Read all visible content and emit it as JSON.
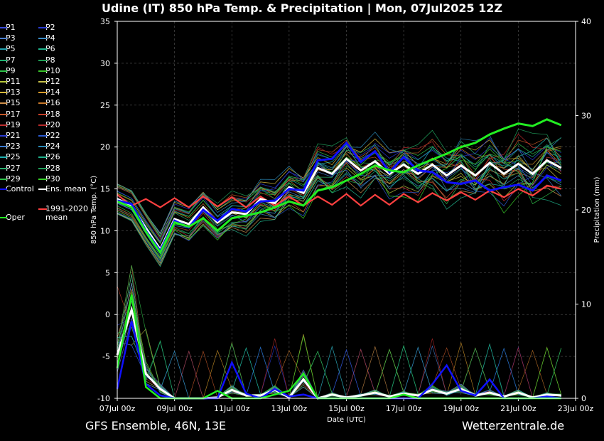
{
  "title": "Udine  (IT)  850 hPa Temp. & Precipitation | Mon, 07Jul2025 12Z",
  "footer": {
    "model": "GFS Ensemble, 46N, 13E",
    "site": "Wetterzentrale.de"
  },
  "legend": [
    {
      "label": "P1",
      "color": "#3a4bd6"
    },
    {
      "label": "P2",
      "color": "#2a3bd0"
    },
    {
      "label": "P3",
      "color": "#4a7fd0"
    },
    {
      "label": "P4",
      "color": "#3b8dc8"
    },
    {
      "label": "P5",
      "color": "#22a2b0"
    },
    {
      "label": "P6",
      "color": "#1fb58e"
    },
    {
      "label": "P7",
      "color": "#1fb070"
    },
    {
      "label": "P8",
      "color": "#1f9e55"
    },
    {
      "label": "P9",
      "color": "#2fc24a"
    },
    {
      "label": "P10",
      "color": "#39c22a"
    },
    {
      "label": "P11",
      "color": "#b8c83a"
    },
    {
      "label": "P12",
      "color": "#c9c24a"
    },
    {
      "label": "P13",
      "color": "#d6b83a"
    },
    {
      "label": "P14",
      "color": "#d69a2a"
    },
    {
      "label": "P15",
      "color": "#d0904a"
    },
    {
      "label": "P16",
      "color": "#c8782a"
    },
    {
      "label": "P17",
      "color": "#c85a2a"
    },
    {
      "label": "P18",
      "color": "#c8402a"
    },
    {
      "label": "P19",
      "color": "#c03030"
    },
    {
      "label": "P20",
      "color": "#b82a2a"
    },
    {
      "label": "P21",
      "color": "#2a3bd0"
    },
    {
      "label": "P22",
      "color": "#2a5ad0"
    },
    {
      "label": "P23",
      "color": "#3a7ad0"
    },
    {
      "label": "P24",
      "color": "#2a8ab8"
    },
    {
      "label": "P25",
      "color": "#1fb0b0"
    },
    {
      "label": "P26",
      "color": "#1fb08a"
    },
    {
      "label": "P27",
      "color": "#2ab070"
    },
    {
      "label": "P28",
      "color": "#1fa05a"
    },
    {
      "label": "P29",
      "color": "#2fc24a"
    },
    {
      "label": "P30",
      "color": "#39d02a"
    },
    {
      "label": "Control",
      "color": "#1010ff"
    },
    {
      "label": "Ens. mean",
      "color": "#ffffff"
    },
    {
      "label": "Oper",
      "color": "#22ee22"
    },
    {
      "label": "1991-2020 mean",
      "color": "#ff4040"
    }
  ],
  "chart_data": {
    "type": "line",
    "title": "Udine  (IT)  850 hPa Temp. & Precipitation | Mon, 07Jul2025 12Z",
    "xlabel": "Date (UTC)",
    "ylabel": "850 hPa Temp. (°C)",
    "y2label": "Precipitation (mm)",
    "xlim": [
      0,
      16
    ],
    "ylim": [
      -10,
      35
    ],
    "y2lim": [
      0,
      40
    ],
    "yticks": [
      -10,
      -5,
      0,
      5,
      10,
      15,
      20,
      25,
      30,
      35
    ],
    "y2ticks": [
      0,
      10,
      20,
      30,
      40
    ],
    "xticks": [
      {
        "x": 0.5,
        "label": "07Jul 00z"
      },
      {
        "x": 2.5,
        "label": "09Jul 00z"
      },
      {
        "x": 4.5,
        "label": "11Jul 00z"
      },
      {
        "x": 6.5,
        "label": "13Jul 00z"
      },
      {
        "x": 8.5,
        "label": "15Jul 00z"
      },
      {
        "x": 10.5,
        "label": "17Jul 00z"
      },
      {
        "x": 12.5,
        "label": "19Jul 00z"
      },
      {
        "x": 14.5,
        "label": "21Jul 00z"
      },
      {
        "x": 16.5,
        "label": "23Jul 00z"
      }
    ],
    "grid": true,
    "legend_position": "left",
    "series": [
      {
        "name": "1991-2020 mean",
        "color": "#ff4040",
        "x": [
          0.5,
          1,
          1.5,
          2,
          2.5,
          3,
          3.5,
          4,
          4.5,
          5,
          5.5,
          6,
          6.5,
          7,
          7.5,
          8,
          8.5,
          9,
          9.5,
          10,
          10.5,
          11,
          11.5,
          12,
          12.5,
          13,
          13.5,
          14,
          14.5,
          15,
          15.5,
          16
        ],
        "y": [
          14.3,
          13.0,
          13.8,
          12.8,
          13.9,
          12.8,
          14.1,
          12.9,
          14.0,
          12.8,
          14.1,
          13.0,
          14.1,
          13.0,
          14.1,
          13.1,
          14.4,
          13.0,
          14.3,
          13.1,
          14.4,
          13.4,
          14.5,
          13.6,
          14.6,
          13.7,
          14.8,
          14.0,
          15.0,
          14.2,
          15.4,
          15.0
        ]
      },
      {
        "name": "Ens. mean",
        "color": "#ffffff",
        "x": [
          0.5,
          1,
          1.5,
          2,
          2.5,
          3,
          3.5,
          4,
          4.5,
          5,
          5.5,
          6,
          6.5,
          7,
          7.5,
          8,
          8.5,
          9,
          9.5,
          10,
          10.5,
          11,
          11.5,
          12,
          12.5,
          13,
          13.5,
          14,
          14.5,
          15,
          15.5,
          16
        ],
        "y": [
          13.8,
          13.0,
          10.3,
          7.8,
          11.4,
          10.8,
          12.8,
          11.0,
          12.2,
          12.0,
          13.8,
          13.3,
          15.2,
          14.5,
          17.5,
          16.8,
          18.6,
          17.2,
          18.3,
          16.8,
          17.9,
          16.8,
          17.9,
          16.6,
          17.8,
          16.6,
          18.1,
          16.8,
          18.0,
          16.8,
          18.4,
          17.5
        ]
      },
      {
        "name": "Control",
        "color": "#1010ff",
        "x": [
          0.5,
          1,
          1.5,
          2,
          2.5,
          3,
          3.5,
          4,
          4.5,
          5,
          5.5,
          6,
          6.5,
          7,
          7.5,
          8,
          8.5,
          9,
          9.5,
          10,
          10.5,
          11,
          11.5,
          12,
          12.5,
          13,
          13.5,
          14,
          14.5,
          15,
          15.5,
          16
        ],
        "y": [
          13.6,
          13.2,
          10.0,
          7.6,
          11.2,
          10.4,
          12.5,
          11.2,
          12.6,
          12.3,
          13.5,
          13.6,
          15.0,
          14.8,
          18.4,
          18.6,
          20.5,
          18.2,
          19.5,
          17.0,
          18.8,
          17.2,
          17.0,
          15.8,
          15.6,
          16.0,
          14.8,
          15.2,
          15.5,
          14.8,
          16.6,
          16.0
        ]
      },
      {
        "name": "Oper",
        "color": "#22ee22",
        "x": [
          0.5,
          1,
          1.5,
          2,
          2.5,
          3,
          3.5,
          4,
          4.5,
          5,
          5.5,
          6,
          6.5,
          7,
          7.5,
          8,
          8.5,
          9,
          9.5,
          10,
          10.5,
          11,
          11.5,
          12,
          12.5,
          13,
          13.5,
          14,
          14.5,
          15,
          15.5,
          16
        ],
        "y": [
          13.5,
          12.8,
          9.9,
          7.4,
          11.0,
          10.5,
          11.5,
          10.0,
          11.5,
          11.8,
          12.2,
          12.8,
          13.5,
          13.0,
          14.8,
          15.2,
          16.0,
          16.8,
          17.8,
          17.2,
          17.0,
          17.8,
          18.5,
          19.2,
          20.0,
          20.5,
          21.5,
          22.2,
          22.8,
          22.5,
          23.3,
          22.6
        ]
      }
    ],
    "precip_series": [
      {
        "name": "Ens. mean",
        "color": "#ffffff",
        "x": [
          0.5,
          1,
          1.5,
          2,
          2.5,
          3,
          3.5,
          4,
          4.5,
          5,
          5.5,
          6,
          6.5,
          7,
          7.5,
          8,
          8.5,
          9,
          9.5,
          10,
          10.5,
          11,
          11.5,
          12,
          12.5,
          13,
          13.5,
          14,
          14.5,
          15,
          15.5,
          16
        ],
        "y": [
          4.6,
          9.4,
          2.6,
          1.0,
          0.0,
          0.0,
          0.0,
          0.1,
          0.9,
          0.3,
          0.3,
          0.9,
          0.1,
          2.0,
          0.0,
          0.4,
          0.1,
          0.3,
          0.6,
          0.2,
          0.5,
          0.3,
          0.9,
          0.5,
          1.0,
          0.3,
          0.6,
          0.2,
          0.6,
          0.1,
          0.4,
          0.3
        ]
      },
      {
        "name": "Control",
        "color": "#1010ff",
        "x": [
          0.5,
          1,
          1.5,
          2,
          2.5,
          3,
          3.5,
          4,
          4.5,
          5,
          5.5,
          6,
          6.5,
          7,
          7.5,
          8,
          8.5,
          9,
          9.5,
          10,
          10.5,
          11,
          11.5,
          12,
          12.5,
          13,
          13.5,
          14,
          14.5,
          15,
          15.5,
          16
        ],
        "y": [
          1.0,
          8.2,
          1.5,
          0.3,
          0.0,
          0.0,
          0.0,
          0.0,
          3.8,
          0.5,
          0.0,
          1.0,
          0.2,
          0.4,
          0.0,
          0.0,
          0.0,
          0.0,
          0.0,
          0.0,
          0.0,
          0.0,
          1.5,
          3.5,
          0.8,
          0.3,
          2.0,
          0.0,
          0.0,
          0.0,
          0.2,
          0.0
        ]
      },
      {
        "name": "Oper",
        "color": "#22ee22",
        "x": [
          0.5,
          1,
          1.5,
          2,
          2.5,
          3,
          3.5,
          4,
          4.5,
          5,
          5.5,
          6,
          6.5,
          7,
          7.5,
          8,
          8.5,
          9,
          9.5,
          10,
          10.5,
          11,
          11.5,
          12,
          12.5,
          13,
          13.5,
          14,
          14.5,
          15,
          15.5,
          16
        ],
        "y": [
          3.2,
          11.0,
          1.2,
          0.0,
          0.0,
          0.0,
          0.0,
          0.8,
          0.0,
          0.0,
          0.0,
          0.4,
          0.8,
          2.6,
          0.0,
          0.0,
          0.0,
          0.0,
          0.0,
          0.0,
          0.4,
          0.0,
          0.0,
          0.0,
          0.0,
          0.0,
          0.0,
          0.0,
          0.0,
          0.0,
          0.0,
          0.0
        ]
      }
    ]
  }
}
